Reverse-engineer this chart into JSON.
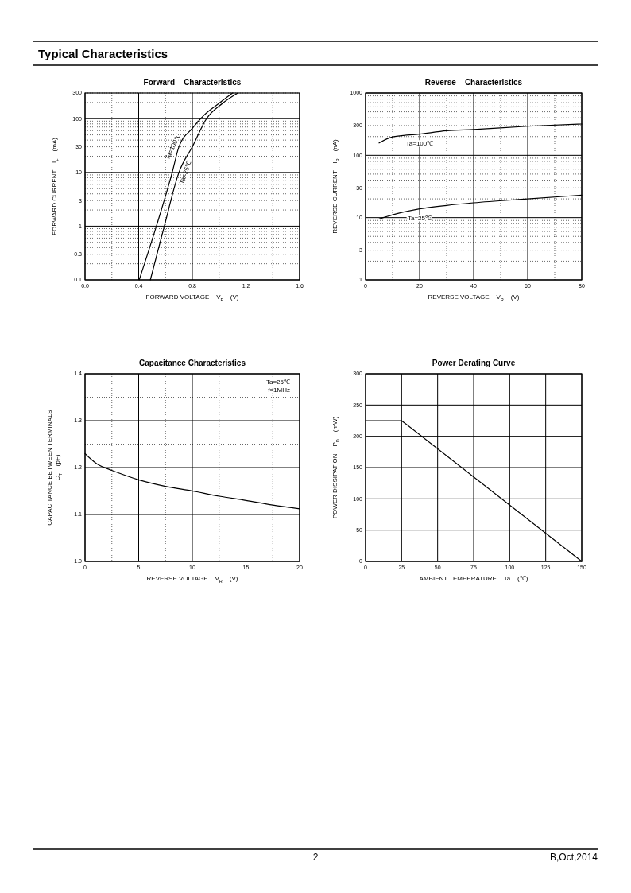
{
  "chart_data": [
    {
      "type": "line",
      "title": "Forward    Characteristics",
      "xlabel": "FORWARD VOLTAGE    V$_{F}$    (V)",
      "ylabel": "FORWARD CURRENT    I$_{F}$    (mA)",
      "log": "y",
      "grid": true,
      "annotations": [
        "Typical Characteristics"
      ],
      "xlim": [
        0,
        1.6
      ],
      "xticks": [
        {
          "value": 0,
          "label": "0.0"
        },
        0.4,
        0.8,
        1.2,
        1.6
      ],
      "ylim": [
        0.1,
        300
      ],
      "yticks": [
        0.1,
        0.3,
        1,
        3,
        10,
        30,
        100,
        300
      ],
      "series": [
        {
          "name": "Ta=100℃",
          "color": "#000000",
          "x": [
            0.404,
            0.532,
            0.65,
            0.7,
            0.8,
            0.887,
            0.985,
            1.1
          ],
          "values": [
            0.1,
            1,
            10,
            30,
            66,
            116,
            182,
            300
          ]
        },
        {
          "name": "Ta=25℃",
          "color": "#000000",
          "x": [
            0.487,
            0.591,
            0.7,
            0.8,
            0.906,
            1.025,
            1.139
          ],
          "values": [
            0.1,
            1,
            10,
            30,
            100,
            193,
            300
          ]
        }
      ]
    },
    {
      "type": "line",
      "title": "Reverse    Characteristics",
      "xlabel": "REVERSE VOLTAGE    V$_{R}$    (V)",
      "ylabel": "REVERSE CURRENT    I$_{R}$    (nA)",
      "log": "y",
      "grid": true,
      "xlim": [
        0,
        80
      ],
      "xticks": [
        0,
        20,
        40,
        60,
        80
      ],
      "ylim": [
        1,
        1000
      ],
      "yticks": [
        1,
        3,
        10,
        30,
        100,
        300,
        1000
      ],
      "series": [
        {
          "name": "Ta=100℃",
          "color": "#000000",
          "x": [
            5,
            10,
            20,
            30,
            40,
            60,
            80
          ],
          "values": [
            158,
            198,
            219,
            248,
            260,
            293,
            318
          ]
        },
        {
          "name": "Ta=25℃",
          "color": "#000000",
          "x": [
            5,
            10,
            20,
            30,
            40,
            60,
            80
          ],
          "values": [
            9.5,
            11.1,
            13.8,
            15.7,
            17.3,
            20,
            23
          ]
        }
      ]
    },
    {
      "type": "line",
      "title": "Capacitance Characteristics",
      "xlabel": "REVERSE VOLTAGE    V$_{R}$    (V)",
      "ylabel": "CAPACITANCE BETWEEN TERMINALS\nC$_{T}$    (pF)",
      "grid": true,
      "annotations": [
        "Ta=25℃",
        "f=1MHz"
      ],
      "xlim": [
        0,
        20
      ],
      "xticks": [
        0,
        5,
        10,
        15,
        20
      ],
      "ylim": [
        1.0,
        1.4
      ],
      "yticks": [
        {
          "value": 1,
          "label": "1.0"
        },
        1.1,
        1.2,
        1.3,
        1.4
      ],
      "series": [
        {
          "color": "#000000",
          "x": [
            0,
            0.5,
            1.1,
            1.7,
            2.5,
            5,
            7.5,
            10,
            12.5,
            15,
            17.5,
            20
          ],
          "values": [
            1.23,
            1.219,
            1.208,
            1.201,
            1.194,
            1.174,
            1.16,
            1.15,
            1.139,
            1.13,
            1.12,
            1.112
          ]
        }
      ]
    },
    {
      "type": "line",
      "title": "Power Derating Curve",
      "xlabel": "AMBIENT TEMPERATURE    Ta    (℃)",
      "ylabel": "POWER DISSIPATION    P$_{D}$    (mW)",
      "grid": true,
      "annotations": [
        "2",
        "B,Oct,2014"
      ],
      "xlim": [
        0,
        150
      ],
      "xticks": [
        0,
        25,
        50,
        75,
        100,
        125,
        150
      ],
      "ylim": [
        0,
        300
      ],
      "yticks": [
        0,
        50,
        100,
        150,
        200,
        250,
        300
      ],
      "series": [
        {
          "color": "#000000",
          "x": [
            0,
            25,
            150
          ],
          "values": [
            225,
            225,
            0
          ]
        }
      ]
    }
  ]
}
